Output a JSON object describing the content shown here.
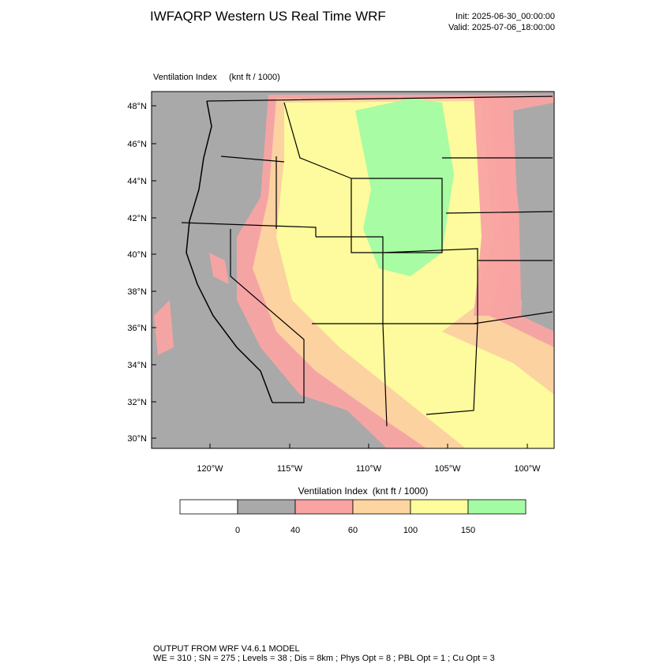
{
  "header": {
    "title": "IWFAQRP Western US Real Time WRF",
    "init": "Init: 2025-06-30_00:00:00",
    "valid": "Valid: 2025-07-06_18:00:00"
  },
  "map": {
    "field_label": "Ventilation Index",
    "units": "(knt ft / 1000)",
    "lat_labels": [
      "48°N",
      "46°N",
      "44°N",
      "42°N",
      "40°N",
      "38°N",
      "36°N",
      "34°N",
      "32°N",
      "30°N"
    ],
    "lon_labels": [
      "120°W",
      "115°W",
      "110°W",
      "105°W",
      "100°W"
    ]
  },
  "colorbar": {
    "title": "Ventilation Index",
    "units": "(knt ft / 1000)",
    "colors": [
      "#ffffff",
      "#a9a9a9",
      "#f9a3a3",
      "#fcd5a0",
      "#fdfd9e",
      "#a3fca3"
    ],
    "labels": [
      "0",
      "40",
      "60",
      "100",
      "150"
    ]
  },
  "footer": {
    "line1": "OUTPUT FROM WRF V4.6.1 MODEL",
    "line2": "WE = 310 ; SN = 275 ; Levels = 38 ; Dis = 8km ; Phys Opt = 8 ; PBL Opt = 1 ; Cu Opt = 3"
  }
}
